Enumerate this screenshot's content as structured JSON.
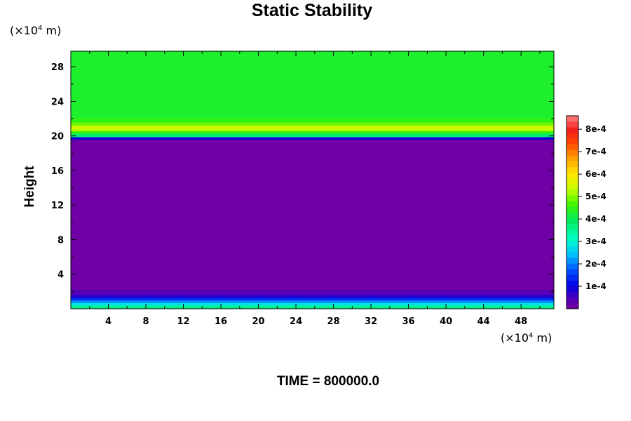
{
  "chart_data": {
    "type": "heatmap",
    "title": "Static Stability",
    "ylabel": "Height",
    "xlabel": "",
    "time_label": "TIME = 800000.0",
    "x_unit": {
      "prefix": "(×10",
      "exp": "4",
      "suffix": " m)"
    },
    "y_unit": {
      "prefix": "(×10",
      "exp": "4",
      "suffix": " m)"
    },
    "xlim": [
      0,
      51.5
    ],
    "ylim": [
      0,
      29.8
    ],
    "x_ticks": [
      4,
      8,
      12,
      16,
      20,
      24,
      28,
      32,
      36,
      40,
      44,
      48
    ],
    "x_tick_labels": [
      "4",
      "8",
      "12",
      "16",
      "20",
      "24",
      "28",
      "32",
      "36",
      "40",
      "44",
      "48"
    ],
    "y_ticks": [
      4,
      8,
      12,
      16,
      20,
      24,
      28
    ],
    "y_tick_labels": [
      "4",
      "8",
      "12",
      "16",
      "20",
      "24",
      "28"
    ],
    "colorbar": {
      "vmin": 0,
      "vmax": 0.00086,
      "ticks": [
        0.0001,
        0.0002,
        0.0003,
        0.0004,
        0.0005,
        0.0006,
        0.0007,
        0.0008
      ],
      "tick_labels": [
        "1e-4",
        "2e-4",
        "3e-4",
        "4e-4",
        "5e-4",
        "6e-4",
        "7e-4",
        "8e-4"
      ],
      "levels": 34
    },
    "bands": [
      {
        "z_bottom": 0.0,
        "z_top": 0.4,
        "value": 0.00036
      },
      {
        "z_bottom": 0.4,
        "z_top": 0.7,
        "value": 0.00028
      },
      {
        "z_bottom": 0.7,
        "z_top": 1.0,
        "value": 0.00021
      },
      {
        "z_bottom": 1.0,
        "z_top": 1.3,
        "value": 0.00014
      },
      {
        "z_bottom": 1.3,
        "z_top": 1.6,
        "value": 8e-05
      },
      {
        "z_bottom": 1.6,
        "z_top": 2.2,
        "value": 4e-05
      },
      {
        "z_bottom": 2.2,
        "z_top": 19.6,
        "value": 1e-05
      },
      {
        "z_bottom": 19.6,
        "z_top": 19.9,
        "value": 9e-05
      },
      {
        "z_bottom": 19.9,
        "z_top": 20.3,
        "value": 0.00038
      },
      {
        "z_bottom": 20.3,
        "z_top": 20.6,
        "value": 0.00046
      },
      {
        "z_bottom": 20.6,
        "z_top": 20.9,
        "value": 0.00053
      },
      {
        "z_bottom": 20.9,
        "z_top": 21.2,
        "value": 0.00055
      },
      {
        "z_bottom": 21.2,
        "z_top": 21.6,
        "value": 0.00049
      },
      {
        "z_bottom": 21.6,
        "z_top": 22.1,
        "value": 0.00045
      },
      {
        "z_bottom": 22.1,
        "z_top": 29.8,
        "value": 0.00043
      }
    ],
    "grid": false,
    "legend": "right colorbar"
  }
}
